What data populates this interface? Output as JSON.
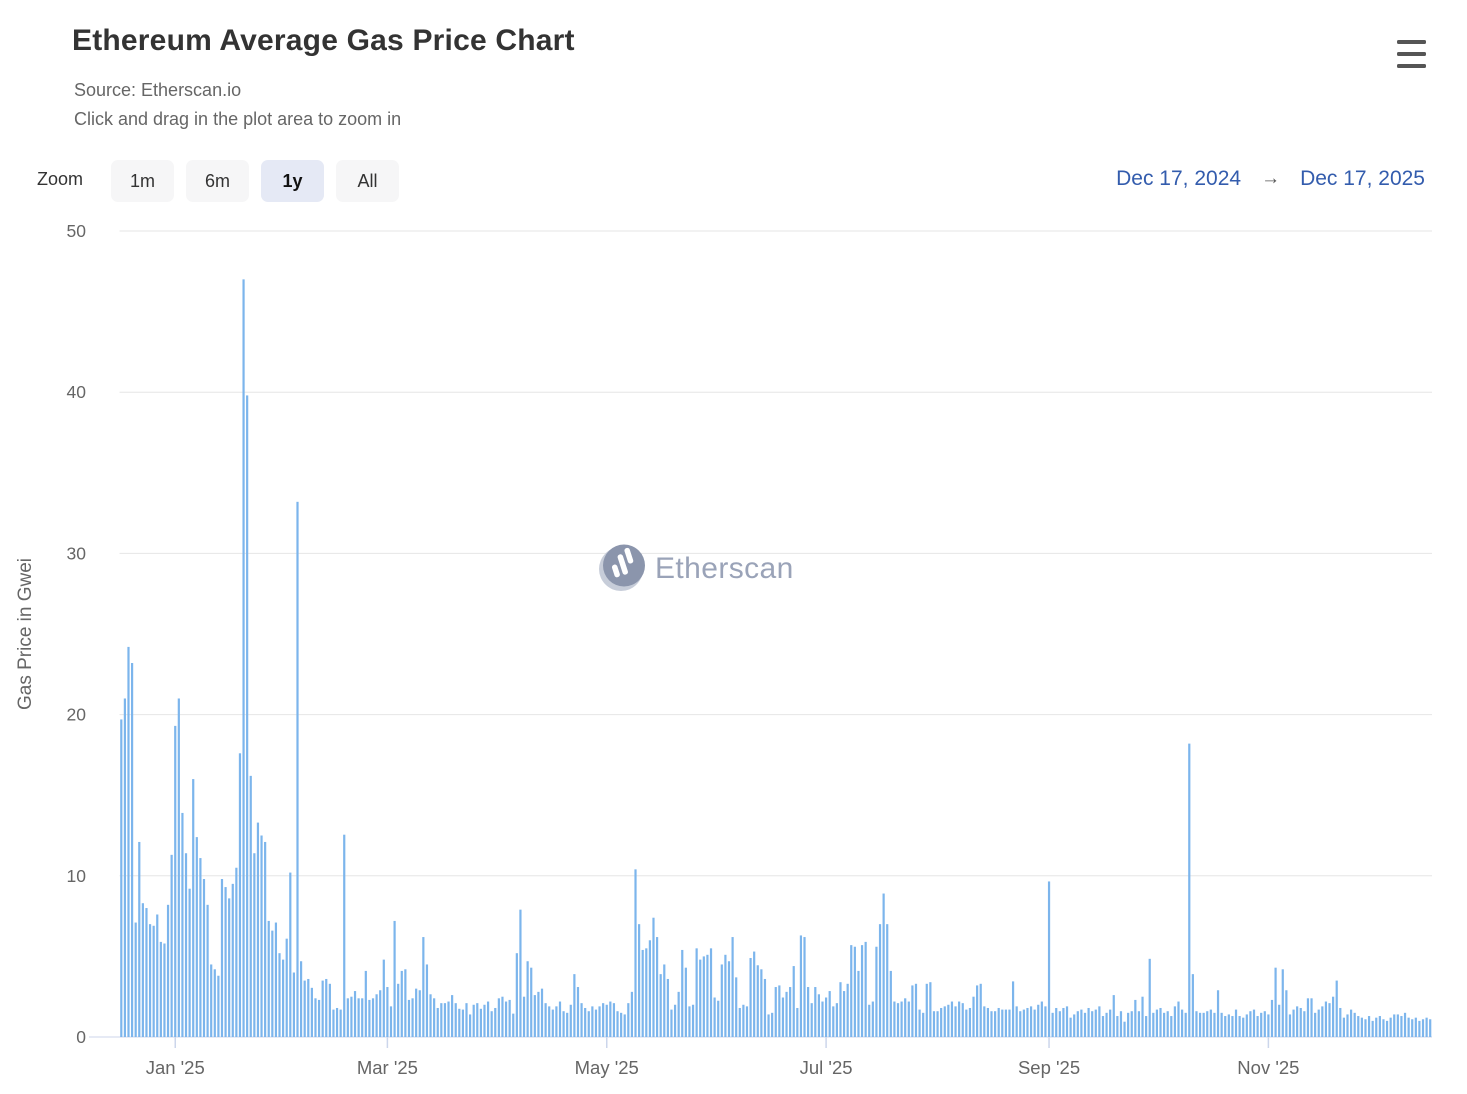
{
  "header": {
    "title": "Ethereum Average Gas Price Chart",
    "subtitle_source": "Source: Etherscan.io",
    "subtitle_hint": "Click and drag in the plot area to zoom in"
  },
  "toolbar": {
    "zoom_label": "Zoom",
    "buttons": [
      {
        "label": "1m",
        "selected": false
      },
      {
        "label": "6m",
        "selected": false
      },
      {
        "label": "1y",
        "selected": true
      },
      {
        "label": "All",
        "selected": false
      }
    ],
    "range": {
      "from": "Dec 17, 2024",
      "arrow": "→",
      "to": "Dec 17, 2025"
    }
  },
  "watermark": {
    "text": "Etherscan",
    "logo": "etherscan-logo-icon"
  },
  "colors": {
    "bar": "#7cb5ec",
    "gridline": "#e6e6e6",
    "axis_line": "#ccd6eb",
    "tick": "#ccd6eb",
    "axis_label": "#666666",
    "title": "#333333",
    "subtitle": "#666666",
    "range_text": "#335cad",
    "button_bg": "#f6f6f7",
    "button_selected_bg": "#e5e9f5",
    "watermark_text": "#9aa3b8",
    "watermark_logo_dark": "#8b95ac",
    "watermark_logo_light": "#c7cdd9"
  },
  "chart_data": {
    "type": "bar",
    "title": "Ethereum Average Gas Price Chart",
    "xlabel": "",
    "ylabel": "Gas Price in Gwei",
    "ylim": [
      0,
      50
    ],
    "yticks": [
      0,
      10,
      20,
      30,
      40,
      50
    ],
    "grid": "horizontal",
    "legend": "none",
    "x_start": "Dec 17, 2024",
    "x_end": "Dec 17, 2025",
    "x_unit": "day",
    "xticks": [
      {
        "label": "Jan '25",
        "day": 15
      },
      {
        "label": "Mar '25",
        "day": 74
      },
      {
        "label": "May '25",
        "day": 135
      },
      {
        "label": "Jul '25",
        "day": 196
      },
      {
        "label": "Sep '25",
        "day": 258
      },
      {
        "label": "Nov '25",
        "day": 319
      }
    ],
    "series_name": "Average Gas Price (Gwei)",
    "values": [
      19.7,
      21,
      24.2,
      23.2,
      7.1,
      12.1,
      8.3,
      8,
      7,
      6.9,
      7.6,
      5.9,
      5.8,
      8.2,
      11.3,
      19.3,
      21,
      13.9,
      11.4,
      9.2,
      16,
      12.4,
      11.1,
      9.8,
      8.2,
      4.5,
      4.2,
      3.8,
      9.8,
      9.3,
      8.6,
      9.5,
      10.5,
      17.6,
      47,
      39.8,
      16.2,
      11.4,
      13.3,
      12.5,
      12.1,
      7.2,
      6.6,
      7.1,
      5.2,
      4.8,
      6.1,
      10.2,
      4,
      33.2,
      4.7,
      3.5,
      3.6,
      3.05,
      2.4,
      2.3,
      3.5,
      3.6,
      3.3,
      1.7,
      1.8,
      1.7,
      12.55,
      2.4,
      2.5,
      2.85,
      2.4,
      2.4,
      4.1,
      2.3,
      2.4,
      2.65,
      2.9,
      4.8,
      3.1,
      1.9,
      7.2,
      3.3,
      4.1,
      4.2,
      2.3,
      2.4,
      3,
      2.9,
      6.2,
      4.5,
      2.65,
      2.4,
      1.8,
      2.1,
      2.1,
      2.2,
      2.6,
      2.1,
      1.75,
      1.7,
      2.1,
      1.4,
      2,
      2.1,
      1.75,
      2,
      2.2,
      1.6,
      1.8,
      2.4,
      2.5,
      2.2,
      2.3,
      1.45,
      5.2,
      7.9,
      2.5,
      4.7,
      4.3,
      2.6,
      2.8,
      3,
      2.1,
      1.9,
      1.7,
      1.9,
      2.2,
      1.6,
      1.5,
      2,
      3.9,
      3.1,
      2.1,
      1.8,
      1.6,
      1.9,
      1.7,
      1.9,
      2.1,
      2,
      2.2,
      2.1,
      1.6,
      1.5,
      1.4,
      2.1,
      2.8,
      10.4,
      7,
      5.4,
      5.5,
      6,
      7.4,
      6.2,
      3.9,
      4.5,
      3.6,
      1.7,
      2,
      2.8,
      5.4,
      4.3,
      1.9,
      2,
      5.5,
      4.8,
      5,
      5.1,
      5.5,
      2.45,
      2.25,
      4.5,
      5.1,
      4.7,
      6.2,
      3.7,
      1.8,
      2,
      1.9,
      4.9,
      5.3,
      4.45,
      4.2,
      3.6,
      1.4,
      1.5,
      3.1,
      3.2,
      2.45,
      2.8,
      3.1,
      4.4,
      1.8,
      6.3,
      6.2,
      3.1,
      2.1,
      3.1,
      2.65,
      2.2,
      2.45,
      2.85,
      1.9,
      2.1,
      3.4,
      2.85,
      3.3,
      5.7,
      5.6,
      4.1,
      5.7,
      5.9,
      2,
      2.2,
      5.6,
      7,
      8.9,
      7,
      4.1,
      2.2,
      2.1,
      2.2,
      2.4,
      2.2,
      3.2,
      3.3,
      1.7,
      1.5,
      3.3,
      3.4,
      1.6,
      1.6,
      1.8,
      1.9,
      2,
      2.2,
      1.9,
      2.2,
      2.1,
      1.7,
      1.8,
      2.5,
      3.2,
      3.3,
      1.9,
      1.8,
      1.6,
      1.6,
      1.8,
      1.7,
      1.7,
      1.7,
      3.45,
      1.9,
      1.6,
      1.7,
      1.8,
      1.9,
      1.7,
      2,
      2.2,
      1.9,
      9.65,
      1.5,
      1.8,
      1.6,
      1.8,
      1.9,
      1.2,
      1.4,
      1.6,
      1.7,
      1.5,
      1.8,
      1.6,
      1.7,
      1.9,
      1.3,
      1.5,
      1.7,
      2.6,
      1.3,
      1.6,
      0.95,
      1.5,
      1.6,
      2.3,
      1.6,
      2.5,
      1.3,
      4.85,
      1.5,
      1.7,
      1.8,
      1.5,
      1.6,
      1.3,
      1.9,
      2.2,
      1.7,
      1.5,
      18.2,
      3.9,
      1.6,
      1.5,
      1.5,
      1.6,
      1.7,
      1.5,
      2.9,
      1.5,
      1.3,
      1.4,
      1.3,
      1.7,
      1.3,
      1.2,
      1.4,
      1.6,
      1.7,
      1.3,
      1.5,
      1.6,
      1.4,
      2.3,
      4.3,
      2,
      4.2,
      2.9,
      1.4,
      1.7,
      1.9,
      1.8,
      1.6,
      2.4,
      2.4,
      1.5,
      1.7,
      1.9,
      2.2,
      2.1,
      2.5,
      3.5,
      1.8,
      1.2,
      1.4,
      1.7,
      1.5,
      1.3,
      1.2,
      1.1,
      1.3,
      1,
      1.2,
      1.3,
      1.1,
      1,
      1.2,
      1.4,
      1.4,
      1.3,
      1.5,
      1.2,
      1.1,
      1.2,
      1,
      1.1,
      1.2,
      1.1
    ]
  }
}
